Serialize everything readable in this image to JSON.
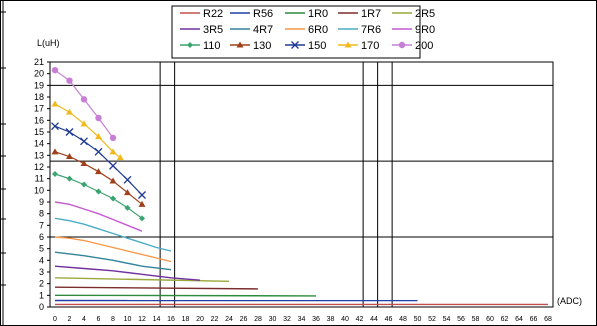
{
  "chart_data": {
    "type": "line",
    "ylabel": "L(uH)",
    "xlabel": "(ADC)",
    "xlim": [
      0,
      68
    ],
    "ylim": [
      0,
      21
    ],
    "x_ticks": [
      0,
      2,
      4,
      6,
      8,
      10,
      12,
      14,
      16,
      18,
      20,
      22,
      24,
      26,
      28,
      30,
      32,
      34,
      36,
      38,
      40,
      42,
      44,
      46,
      48,
      50,
      52,
      54,
      56,
      58,
      60,
      62,
      64,
      66,
      68
    ],
    "y_ticks": [
      0,
      1,
      2,
      3,
      4,
      5,
      6,
      7,
      8,
      9,
      10,
      11,
      12,
      13,
      14,
      15,
      16,
      17,
      18,
      19,
      20,
      21
    ],
    "major_gridlines_y": [
      6,
      12.5,
      19
    ],
    "major_gridlines_x": [
      14.5,
      16.5,
      42.5,
      44.5,
      46.5
    ],
    "legend_position": "top",
    "series": [
      {
        "name": "R22",
        "color": "#c0504d",
        "marker": "none",
        "x": [
          0,
          68
        ],
        "y": [
          0.22,
          0.22
        ]
      },
      {
        "name": "R56",
        "color": "#1f3fa8",
        "marker": "none",
        "x": [
          0,
          50
        ],
        "y": [
          0.56,
          0.55
        ]
      },
      {
        "name": "1R0",
        "color": "#2e8b3e",
        "marker": "none",
        "x": [
          0,
          36
        ],
        "y": [
          1.0,
          0.95
        ]
      },
      {
        "name": "1R7",
        "color": "#7b2c2c",
        "marker": "none",
        "x": [
          0,
          28
        ],
        "y": [
          1.7,
          1.55
        ]
      },
      {
        "name": "2R5",
        "color": "#9aa83c",
        "marker": "none",
        "x": [
          0,
          24
        ],
        "y": [
          2.5,
          2.2
        ]
      },
      {
        "name": "3R5",
        "color": "#7030a0",
        "marker": "none",
        "x": [
          0,
          4,
          8,
          12,
          16,
          20
        ],
        "y": [
          3.5,
          3.3,
          3.1,
          2.8,
          2.5,
          2.3
        ]
      },
      {
        "name": "4R7",
        "color": "#31849b",
        "marker": "none",
        "x": [
          0,
          4,
          8,
          12,
          16
        ],
        "y": [
          4.7,
          4.4,
          4.0,
          3.5,
          3.2
        ]
      },
      {
        "name": "6R0",
        "color": "#f79646",
        "marker": "none",
        "x": [
          0,
          2,
          4,
          6,
          8,
          10,
          12,
          14,
          16
        ],
        "y": [
          6.0,
          5.9,
          5.7,
          5.4,
          5.1,
          4.8,
          4.5,
          4.2,
          3.9
        ]
      },
      {
        "name": "7R6",
        "color": "#4bacc6",
        "marker": "none",
        "x": [
          0,
          2,
          4,
          6,
          8,
          10,
          12,
          14,
          16
        ],
        "y": [
          7.6,
          7.4,
          7.1,
          6.7,
          6.3,
          5.9,
          5.5,
          5.1,
          4.8
        ]
      },
      {
        "name": "9R0",
        "color": "#c55ad0",
        "marker": "none",
        "x": [
          0,
          2,
          4,
          6,
          8,
          10,
          12
        ],
        "y": [
          9.0,
          8.8,
          8.4,
          8.0,
          7.5,
          7.0,
          6.5
        ]
      },
      {
        "name": "110",
        "color": "#3aa36f",
        "marker": "diamond",
        "x": [
          0,
          2,
          4,
          6,
          8,
          10,
          12
        ],
        "y": [
          11.4,
          11.0,
          10.5,
          9.9,
          9.3,
          8.5,
          7.6
        ]
      },
      {
        "name": "130",
        "color": "#a0401a",
        "marker": "triangle",
        "x": [
          0,
          2,
          4,
          6,
          8,
          10,
          12
        ],
        "y": [
          13.3,
          12.9,
          12.3,
          11.6,
          10.8,
          9.8,
          8.8
        ]
      },
      {
        "name": "150",
        "color": "#1f3a93",
        "marker": "x",
        "x": [
          0,
          2,
          4,
          6,
          8,
          10,
          12
        ],
        "y": [
          15.5,
          15.0,
          14.2,
          13.3,
          12.1,
          10.9,
          9.6
        ]
      },
      {
        "name": "170",
        "color": "#f2b81c",
        "marker": "triangle",
        "x": [
          0,
          2,
          4,
          6,
          8,
          9
        ],
        "y": [
          17.4,
          16.7,
          15.7,
          14.6,
          13.3,
          12.8
        ]
      },
      {
        "name": "200",
        "color": "#c77fd6",
        "marker": "circle",
        "x": [
          0,
          2,
          4,
          6,
          8
        ],
        "y": [
          20.3,
          19.4,
          17.8,
          16.2,
          14.5
        ]
      }
    ]
  }
}
